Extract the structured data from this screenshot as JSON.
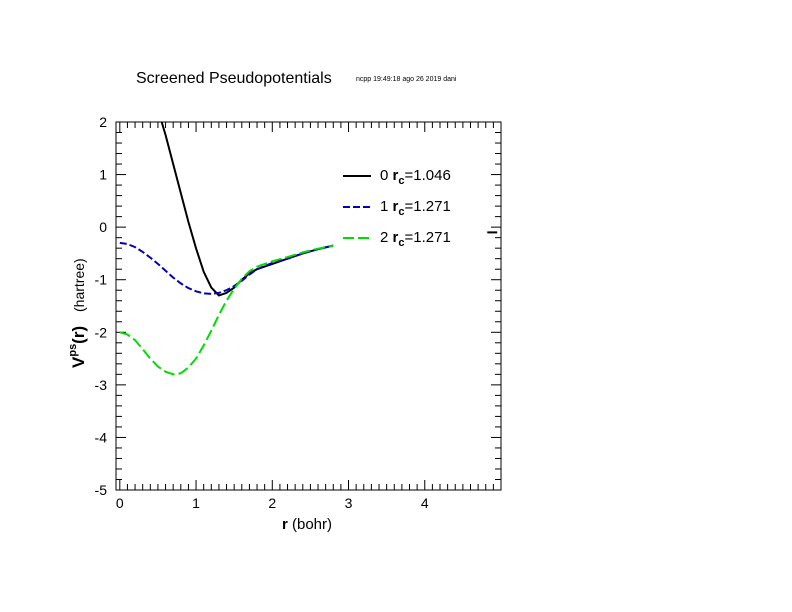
{
  "header": {
    "title": "Screened Pseudopotentials",
    "stamp": "ncpp 19:49:18 ago 26 2019 dani"
  },
  "axes": {
    "xlabel_bold": "r",
    "xlabel_rest": " (bohr)",
    "ylabel_main": "V",
    "ylabel_sup": "ps",
    "ylabel_arg": "(r)",
    "ylabel_unit": "(hartree)"
  },
  "chart_data": {
    "type": "line",
    "xlim": [
      -0.05,
      5.0
    ],
    "ylim": [
      -5,
      2
    ],
    "xticks": [
      0,
      1,
      2,
      3,
      4
    ],
    "yticks": [
      2,
      1,
      0,
      -1,
      -2,
      -3,
      -4,
      -5
    ],
    "grid": false,
    "legend_position": "top-right",
    "series": [
      {
        "name": "0",
        "rc_label": "r",
        "rc_sub": "c",
        "rc_value": "=1.046",
        "color": "#000000",
        "dash": "solid",
        "x": [
          0.55,
          0.6,
          0.7,
          0.8,
          0.9,
          1.0,
          1.1,
          1.2,
          1.3,
          1.4,
          1.5,
          1.6,
          1.7,
          1.8,
          2.0,
          2.2,
          2.4,
          2.6,
          2.8
        ],
        "y": [
          2.0,
          1.75,
          1.2,
          0.65,
          0.1,
          -0.4,
          -0.85,
          -1.15,
          -1.3,
          -1.25,
          -1.15,
          -1.0,
          -0.88,
          -0.8,
          -0.7,
          -0.6,
          -0.5,
          -0.42,
          -0.35
        ]
      },
      {
        "name": "1",
        "rc_label": "r",
        "rc_sub": "c",
        "rc_value": "=1.271",
        "color": "#0000b8",
        "dash": "dashed",
        "x": [
          0.0,
          0.1,
          0.2,
          0.3,
          0.4,
          0.5,
          0.6,
          0.7,
          0.8,
          0.9,
          1.0,
          1.1,
          1.2,
          1.3,
          1.4,
          1.5,
          1.6,
          1.7,
          1.8,
          2.0,
          2.2,
          2.4,
          2.6,
          2.8
        ],
        "y": [
          -0.3,
          -0.32,
          -0.38,
          -0.47,
          -0.58,
          -0.7,
          -0.83,
          -0.96,
          -1.07,
          -1.16,
          -1.22,
          -1.26,
          -1.27,
          -1.25,
          -1.2,
          -1.12,
          -1.02,
          -0.9,
          -0.8,
          -0.68,
          -0.6,
          -0.5,
          -0.42,
          -0.35
        ]
      },
      {
        "name": "2",
        "rc_label": "r",
        "rc_sub": "c",
        "rc_value": "=1.271",
        "color": "#00dd00",
        "dash": "longdash",
        "x": [
          0.0,
          0.1,
          0.2,
          0.3,
          0.4,
          0.5,
          0.6,
          0.7,
          0.8,
          0.9,
          1.0,
          1.1,
          1.2,
          1.3,
          1.4,
          1.5,
          1.6,
          1.7,
          1.8,
          2.0,
          2.2,
          2.4,
          2.6,
          2.8
        ],
        "y": [
          -2.0,
          -2.04,
          -2.15,
          -2.32,
          -2.5,
          -2.65,
          -2.75,
          -2.8,
          -2.78,
          -2.67,
          -2.5,
          -2.25,
          -1.97,
          -1.67,
          -1.4,
          -1.17,
          -0.98,
          -0.84,
          -0.75,
          -0.65,
          -0.57,
          -0.48,
          -0.41,
          -0.35
        ]
      }
    ],
    "tail_mark": {
      "x": [
        4.82,
        4.95
      ],
      "y": -0.1,
      "color": "#000000"
    }
  }
}
